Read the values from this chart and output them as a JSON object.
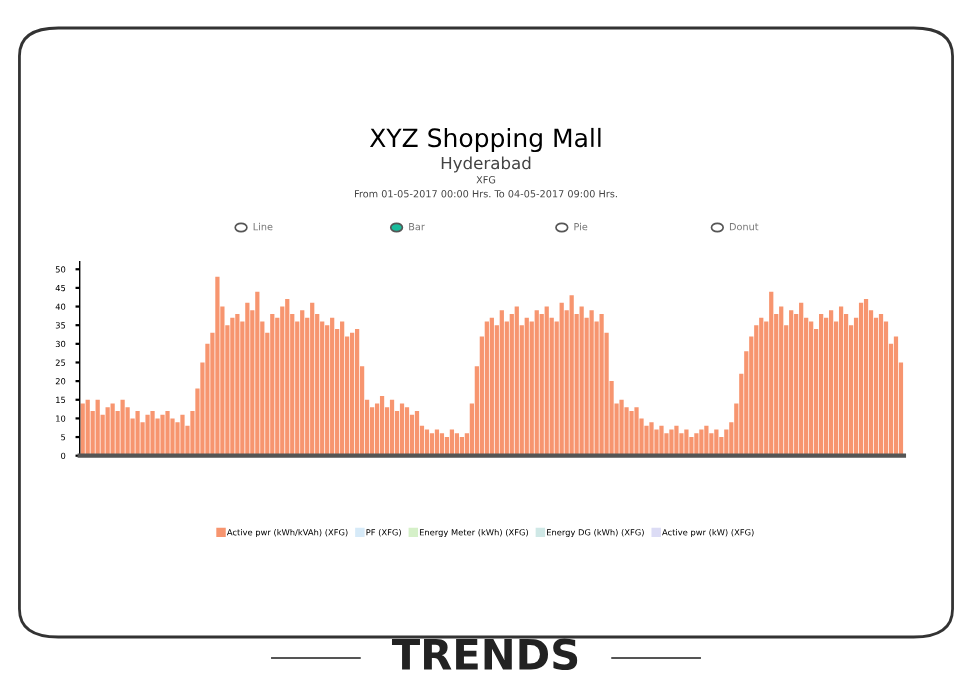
{
  "chart_data": {
    "type": "bar",
    "title": "XYZ Shopping Mall",
    "subtitle": "Hyderabad\nXFG\nFrom 01-05-2017 00:00 Hrs. To 04-05-2017 09:00 Hrs.",
    "categories": [
      null,
      null,
      null,
      null,
      null,
      null,
      null,
      null,
      null,
      null,
      null,
      null,
      null,
      null,
      null,
      null,
      null,
      null,
      null,
      null,
      null,
      null,
      null,
      null,
      null,
      null,
      null,
      null,
      null,
      null,
      null,
      null,
      null,
      null,
      null,
      null,
      null,
      null,
      null,
      null,
      null,
      null,
      null,
      null,
      null,
      null,
      null,
      null,
      null,
      null,
      null,
      null,
      null,
      null,
      null,
      null,
      null,
      null,
      null,
      null,
      null,
      null,
      null,
      null,
      null,
      null,
      null,
      null,
      null,
      null,
      null,
      null,
      null,
      null,
      null,
      null,
      null,
      null,
      null,
      null,
      null,
      null,
      null,
      null,
      null,
      null,
      null,
      null,
      null,
      null,
      null,
      null,
      null,
      null,
      null,
      null,
      null,
      null,
      null,
      null,
      null,
      null,
      null,
      null,
      null,
      null,
      null,
      null,
      null,
      null,
      null,
      null,
      null,
      null,
      null,
      null,
      null,
      null,
      null,
      null,
      null,
      null,
      null,
      null,
      null,
      null,
      null,
      null,
      null,
      null,
      null,
      null,
      null,
      null,
      null,
      null,
      null,
      null,
      null,
      null,
      null,
      null,
      null,
      null,
      null,
      null,
      null,
      null,
      null,
      null,
      null,
      null,
      null,
      null,
      null,
      null,
      null,
      null,
      null,
      null,
      null,
      null,
      null,
      null,
      null
    ],
    "series": [
      {
        "name": "Active pwr (kWh/kVAh) (XFG)",
        "color": "#f7956f",
        "values": [
          14,
          15,
          12,
          15,
          11,
          13,
          14,
          12,
          15,
          13,
          10,
          12,
          9,
          11,
          12,
          10,
          11,
          12,
          10,
          9,
          11,
          8,
          12,
          18,
          25,
          30,
          33,
          48,
          40,
          35,
          37,
          38,
          36,
          41,
          39,
          44,
          36,
          33,
          38,
          37,
          40,
          42,
          38,
          36,
          39,
          37,
          41,
          38,
          36,
          35,
          37,
          34,
          36,
          32,
          33,
          34,
          24,
          15,
          13,
          14,
          16,
          13,
          15,
          12,
          14,
          13,
          11,
          12,
          8,
          7,
          6,
          7,
          6,
          5,
          7,
          6,
          5,
          6,
          14,
          24,
          32,
          36,
          37,
          35,
          39,
          36,
          38,
          40,
          35,
          37,
          36,
          39,
          38,
          40,
          37,
          36,
          41,
          39,
          43,
          38,
          40,
          37,
          39,
          36,
          38,
          33,
          20,
          14,
          15,
          13,
          12,
          13,
          10,
          8,
          9,
          7,
          8,
          6,
          7,
          8,
          6,
          7,
          5,
          6,
          7,
          8,
          6,
          7,
          5,
          7,
          9,
          14,
          22,
          28,
          32,
          35,
          37,
          36,
          44,
          38,
          40,
          35,
          39,
          38,
          41,
          37,
          36,
          34,
          38,
          37,
          39,
          36,
          40,
          38,
          35,
          37,
          41,
          42,
          39,
          37,
          38,
          36,
          30,
          32,
          25
        ]
      },
      {
        "name": "PF (XFG)",
        "color": "#d6eaf8",
        "values": [
          null,
          null,
          null,
          null,
          null,
          null,
          null,
          null,
          null,
          null,
          null,
          null,
          null,
          null,
          null,
          null,
          null,
          null,
          null,
          null,
          null,
          null,
          null,
          null,
          null,
          null,
          null,
          null,
          null,
          null,
          null,
          null,
          null,
          null,
          null,
          null,
          null,
          null,
          null,
          null,
          null,
          null,
          null,
          null,
          null,
          null,
          null,
          null,
          null,
          null,
          null,
          null,
          null,
          null,
          null,
          null,
          null,
          null,
          null,
          null,
          null,
          null,
          null,
          null,
          null,
          null,
          null,
          null,
          null,
          null,
          null,
          null,
          null,
          null,
          null,
          null,
          null,
          null,
          null,
          null,
          null,
          null,
          null,
          null,
          null,
          null,
          null,
          null,
          null,
          null,
          null,
          null,
          null,
          null,
          null,
          null,
          null,
          null,
          null,
          null,
          null,
          null,
          null,
          null,
          null,
          null,
          null,
          null,
          null,
          null,
          null,
          null,
          null,
          null,
          null,
          null,
          null,
          null,
          null,
          null,
          null,
          null,
          null,
          null,
          null,
          null,
          null,
          null,
          null,
          null,
          null,
          null,
          null,
          null,
          null,
          null,
          null,
          null,
          null,
          null,
          null,
          null,
          null,
          null,
          null,
          null,
          null,
          null,
          null,
          null,
          null,
          null,
          null,
          null,
          null,
          null,
          null,
          null,
          null,
          null,
          null,
          null,
          null,
          null,
          null
        ]
      },
      {
        "name": "Energy Meter (kWh) (XFG)",
        "color": "#d5f0c8",
        "values": [
          null,
          null,
          null,
          null,
          null,
          null,
          null,
          null,
          null,
          null,
          null,
          null,
          null,
          null,
          null,
          null,
          null,
          null,
          null,
          null,
          null,
          null,
          null,
          null,
          null,
          null,
          null,
          null,
          null,
          null,
          null,
          null,
          null,
          null,
          null,
          null,
          null,
          null,
          null,
          null,
          null,
          null,
          null,
          null,
          null,
          null,
          null,
          null,
          null,
          null,
          null,
          null,
          null,
          null,
          null,
          null,
          null,
          null,
          null,
          null,
          null,
          null,
          null,
          null,
          null,
          null,
          null,
          null,
          null,
          null,
          null,
          null,
          null,
          null,
          null,
          null,
          null,
          null,
          null,
          null,
          null,
          null,
          null,
          null,
          null,
          null,
          null,
          null,
          null,
          null,
          null,
          null,
          null,
          null,
          null,
          null,
          null,
          null,
          null,
          null,
          null,
          null,
          null,
          null,
          null,
          null,
          null,
          null,
          null,
          null,
          null,
          null,
          null,
          null,
          null,
          null,
          null,
          null,
          null,
          null,
          null,
          null,
          null,
          null,
          null,
          null,
          null,
          null,
          null,
          null,
          null,
          null,
          null,
          null,
          null,
          null,
          null,
          null,
          null,
          null,
          null,
          null,
          null,
          null,
          null,
          null,
          null,
          null,
          null,
          null,
          null,
          null,
          null,
          null,
          null,
          null,
          null,
          null,
          null,
          null,
          null,
          null,
          null,
          null,
          null
        ]
      },
      {
        "name": "Energy DG (kWh) (XFG)",
        "color": "#cfe8e6",
        "values": [
          null,
          null,
          null,
          null,
          null,
          null,
          null,
          null,
          null,
          null,
          null,
          null,
          null,
          null,
          null,
          null,
          null,
          null,
          null,
          null,
          null,
          null,
          null,
          null,
          null,
          null,
          null,
          null,
          null,
          null,
          null,
          null,
          null,
          null,
          null,
          null,
          null,
          null,
          null,
          null,
          null,
          null,
          null,
          null,
          null,
          null,
          null,
          null,
          null,
          null,
          null,
          null,
          null,
          null,
          null,
          null,
          null,
          null,
          null,
          null,
          null,
          null,
          null,
          null,
          null,
          null,
          null,
          null,
          null,
          null,
          null,
          null,
          null,
          null,
          null,
          null,
          null,
          null,
          null,
          null,
          null,
          null,
          null,
          null,
          null,
          null,
          null,
          null,
          null,
          null,
          null,
          null,
          null,
          null,
          null,
          null,
          null,
          null,
          null,
          null,
          null,
          null,
          null,
          null,
          null,
          null,
          null,
          null,
          null,
          null,
          null,
          null,
          null,
          null,
          null,
          null,
          null,
          null,
          null,
          null,
          null,
          null,
          null,
          null,
          null,
          null,
          null,
          null,
          null,
          null,
          null,
          null,
          null,
          null,
          null,
          null,
          null,
          null,
          null,
          null,
          null,
          null,
          null,
          null,
          null,
          null,
          null,
          null,
          null,
          null,
          null,
          null,
          null,
          null,
          null,
          null,
          null,
          null,
          null,
          null,
          null,
          null,
          null,
          null,
          null
        ]
      },
      {
        "name": "Active pwr (kW) (XFG)",
        "color": "#dcdcf5",
        "values": [
          null,
          null,
          null,
          null,
          null,
          null,
          null,
          null,
          null,
          null,
          null,
          null,
          null,
          null,
          null,
          null,
          null,
          null,
          null,
          null,
          null,
          null,
          null,
          null,
          null,
          null,
          null,
          null,
          null,
          null,
          null,
          null,
          null,
          null,
          null,
          null,
          null,
          null,
          null,
          null,
          null,
          null,
          null,
          null,
          null,
          null,
          null,
          null,
          null,
          null,
          null,
          null,
          null,
          null,
          null,
          null,
          null,
          null,
          null,
          null,
          null,
          null,
          null,
          null,
          null,
          null,
          null,
          null,
          null,
          null,
          null,
          null,
          null,
          null,
          null,
          null,
          null,
          null,
          null,
          null,
          null,
          null,
          null,
          null,
          null,
          null,
          null,
          null,
          null,
          null,
          null,
          null,
          null,
          null,
          null,
          null,
          null,
          null,
          null,
          null,
          null,
          null,
          null,
          null,
          null,
          null,
          null,
          null,
          null,
          null,
          null,
          null,
          null,
          null,
          null,
          null,
          null,
          null,
          null,
          null,
          null,
          null,
          null,
          null,
          null,
          null,
          null,
          null,
          null,
          null,
          null,
          null,
          null,
          null,
          null,
          null,
          null,
          null,
          null,
          null,
          null,
          null,
          null,
          null,
          null,
          null,
          null,
          null,
          null,
          null,
          null,
          null,
          null,
          null,
          null,
          null,
          null,
          null,
          null,
          null,
          null,
          null,
          null,
          null,
          null
        ]
      }
    ],
    "ylim": [
      0,
      52
    ],
    "yticks": [
      0,
      5,
      10,
      15,
      20,
      25,
      30,
      35,
      40,
      45,
      50
    ],
    "tick_labels": "y",
    "grid": false,
    "legend": "bottom",
    "annotations": [
      "Line",
      "Bar",
      "Pie",
      "Donut",
      "TRENDS"
    ]
  }
}
